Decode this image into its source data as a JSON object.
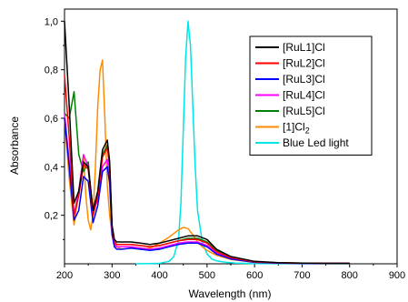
{
  "chart_data": {
    "type": "line",
    "xlabel": "Wavelength (nm)",
    "ylabel": "Absorbance",
    "xlim": [
      200,
      900
    ],
    "ylim": [
      0,
      1.05
    ],
    "x_ticks": [
      200,
      300,
      400,
      500,
      600,
      700,
      800,
      900
    ],
    "x_tick_labels": [
      "200",
      "300",
      "400",
      "500",
      "600",
      "700",
      "800",
      "900"
    ],
    "y_ticks": [
      0.2,
      0.4,
      0.6,
      0.8,
      1.0
    ],
    "y_tick_labels": [
      "0,2",
      "0,4",
      "0,6",
      "0,8",
      "1,0"
    ],
    "grid": false,
    "legend_position": "top-right",
    "series": [
      {
        "name": "[RuL1]Cl",
        "color": "#000000",
        "x": [
          200,
          210,
          220,
          230,
          240,
          250,
          260,
          270,
          280,
          290,
          295,
          300,
          305,
          310,
          320,
          340,
          360,
          380,
          400,
          420,
          440,
          460,
          480,
          500,
          520,
          550,
          600,
          650,
          700,
          750,
          800
        ],
        "y": [
          1.0,
          0.65,
          0.25,
          0.3,
          0.42,
          0.4,
          0.22,
          0.3,
          0.47,
          0.51,
          0.42,
          0.16,
          0.1,
          0.09,
          0.09,
          0.09,
          0.085,
          0.08,
          0.085,
          0.095,
          0.105,
          0.115,
          0.115,
          0.1,
          0.06,
          0.03,
          0.01,
          0.005,
          0.003,
          0.002,
          0.002
        ]
      },
      {
        "name": "[RuL2]Cl",
        "color": "#ff0000",
        "x": [
          200,
          210,
          220,
          230,
          240,
          250,
          260,
          270,
          280,
          290,
          295,
          300,
          305,
          310,
          320,
          340,
          360,
          380,
          400,
          420,
          440,
          460,
          480,
          500,
          520,
          550,
          600,
          650,
          700,
          750,
          800
        ],
        "y": [
          0.78,
          0.52,
          0.2,
          0.28,
          0.41,
          0.39,
          0.2,
          0.28,
          0.44,
          0.48,
          0.4,
          0.15,
          0.09,
          0.08,
          0.08,
          0.08,
          0.075,
          0.07,
          0.075,
          0.085,
          0.095,
          0.1,
          0.1,
          0.085,
          0.05,
          0.025,
          0.008,
          0.004,
          0.003,
          0.002,
          0.002
        ]
      },
      {
        "name": "[RuL3]Cl",
        "color": "#0000ff",
        "x": [
          200,
          210,
          220,
          230,
          240,
          250,
          260,
          270,
          280,
          290,
          295,
          300,
          305,
          310,
          320,
          340,
          360,
          380,
          400,
          420,
          440,
          460,
          480,
          500,
          520,
          550,
          600,
          650,
          700,
          750,
          800
        ],
        "y": [
          0.6,
          0.4,
          0.18,
          0.22,
          0.36,
          0.34,
          0.17,
          0.24,
          0.38,
          0.4,
          0.33,
          0.12,
          0.07,
          0.06,
          0.06,
          0.065,
          0.06,
          0.055,
          0.06,
          0.07,
          0.08,
          0.085,
          0.085,
          0.07,
          0.04,
          0.02,
          0.006,
          0.003,
          0.002,
          0.002,
          0.002
        ]
      },
      {
        "name": "[RuL4]Cl",
        "color": "#ff00ff",
        "x": [
          200,
          210,
          220,
          230,
          240,
          250,
          260,
          270,
          280,
          290,
          295,
          300,
          305,
          310,
          320,
          340,
          360,
          380,
          400,
          420,
          440,
          460,
          480,
          500,
          520,
          550,
          600,
          650,
          700,
          750,
          800
        ],
        "y": [
          0.62,
          0.42,
          0.2,
          0.3,
          0.45,
          0.4,
          0.22,
          0.26,
          0.4,
          0.43,
          0.36,
          0.13,
          0.08,
          0.07,
          0.07,
          0.07,
          0.065,
          0.06,
          0.065,
          0.075,
          0.085,
          0.09,
          0.09,
          0.075,
          0.045,
          0.022,
          0.007,
          0.003,
          0.002,
          0.002,
          0.002
        ]
      },
      {
        "name": "[RuL5]Cl",
        "color": "#008000",
        "x": [
          200,
          210,
          220,
          230,
          240,
          250,
          260,
          270,
          280,
          290,
          295,
          300,
          305,
          310,
          320,
          340,
          360,
          380,
          400,
          420,
          440,
          460,
          480,
          500,
          520,
          550,
          600,
          650,
          700,
          750,
          800
        ],
        "y": [
          0.62,
          0.6,
          0.71,
          0.45,
          0.38,
          0.42,
          0.2,
          0.28,
          0.45,
          0.49,
          0.4,
          0.15,
          0.09,
          0.08,
          0.08,
          0.08,
          0.075,
          0.07,
          0.075,
          0.085,
          0.095,
          0.105,
          0.105,
          0.09,
          0.055,
          0.027,
          0.008,
          0.004,
          0.003,
          0.002,
          0.002
        ]
      },
      {
        "name": "[1]Cl2",
        "color": "#ff8c00",
        "x": [
          200,
          210,
          220,
          230,
          240,
          245,
          250,
          255,
          260,
          265,
          270,
          275,
          280,
          285,
          290,
          295,
          300,
          310,
          320,
          340,
          360,
          380,
          400,
          420,
          440,
          450,
          460,
          470,
          480,
          490,
          500,
          520,
          550,
          600,
          650,
          700,
          750,
          800
        ],
        "y": [
          0.6,
          0.35,
          0.16,
          0.3,
          0.45,
          0.28,
          0.18,
          0.14,
          0.2,
          0.4,
          0.65,
          0.8,
          0.84,
          0.6,
          0.32,
          0.2,
          0.12,
          0.07,
          0.06,
          0.065,
          0.06,
          0.065,
          0.085,
          0.11,
          0.14,
          0.15,
          0.145,
          0.12,
          0.09,
          0.07,
          0.055,
          0.035,
          0.018,
          0.006,
          0.003,
          0.002,
          0.002,
          0.002
        ]
      },
      {
        "name": "Blue Led light",
        "color": "#00e5e5",
        "x": [
          350,
          400,
          420,
          430,
          440,
          445,
          450,
          455,
          460,
          465,
          470,
          475,
          480,
          490,
          500,
          510,
          520,
          540,
          560,
          600,
          700,
          800
        ],
        "y": [
          0.0,
          0.002,
          0.01,
          0.03,
          0.1,
          0.25,
          0.55,
          0.85,
          1.0,
          0.9,
          0.65,
          0.4,
          0.22,
          0.09,
          0.04,
          0.02,
          0.012,
          0.006,
          0.003,
          0.001,
          0.0,
          0.0
        ]
      }
    ]
  },
  "legend_labels": {
    "[RuL1]Cl": "[RuL1]Cl",
    "[RuL2]Cl": "[RuL2]Cl",
    "[RuL3]Cl": "[RuL3]Cl",
    "[RuL4]Cl": "[RuL4]Cl",
    "[RuL5]Cl": "[RuL5]Cl",
    "[1]Cl2": "[1]Cl2",
    "Blue Led light": "Blue Led light"
  }
}
